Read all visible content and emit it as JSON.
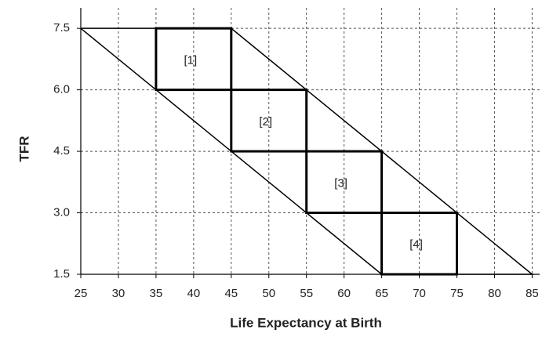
{
  "chart_data": {
    "type": "line",
    "x_label": "Life Expectancy at Birth",
    "y_label": "TFR",
    "xlim": [
      25,
      86
    ],
    "ylim": [
      1.5,
      8
    ],
    "xticks": [
      25,
      30,
      35,
      40,
      45,
      50,
      55,
      60,
      65,
      70,
      75,
      80,
      85
    ],
    "yticks": [
      1.5,
      {
        "value": 3,
        "label": "3.0"
      },
      4.5,
      {
        "value": 6,
        "label": "6.0"
      },
      7.5
    ],
    "grid": true,
    "outline": {
      "x": [
        25,
        45,
        85,
        65,
        25
      ],
      "y": [
        7.5,
        7.5,
        1.5,
        1.5,
        7.5
      ],
      "color": "#000000"
    },
    "regions": [
      {
        "label": "[1]",
        "x": [
          35,
          45
        ],
        "y": [
          6,
          7.5
        ]
      },
      {
        "label": "[2]",
        "x": [
          45,
          55
        ],
        "y": [
          4.5,
          6
        ]
      },
      {
        "label": "[3]",
        "x": [
          55,
          65
        ],
        "y": [
          3,
          4.5
        ]
      },
      {
        "label": "[4]",
        "x": [
          65,
          75
        ],
        "y": [
          1.5,
          3
        ]
      }
    ],
    "region_color": "#000000"
  }
}
